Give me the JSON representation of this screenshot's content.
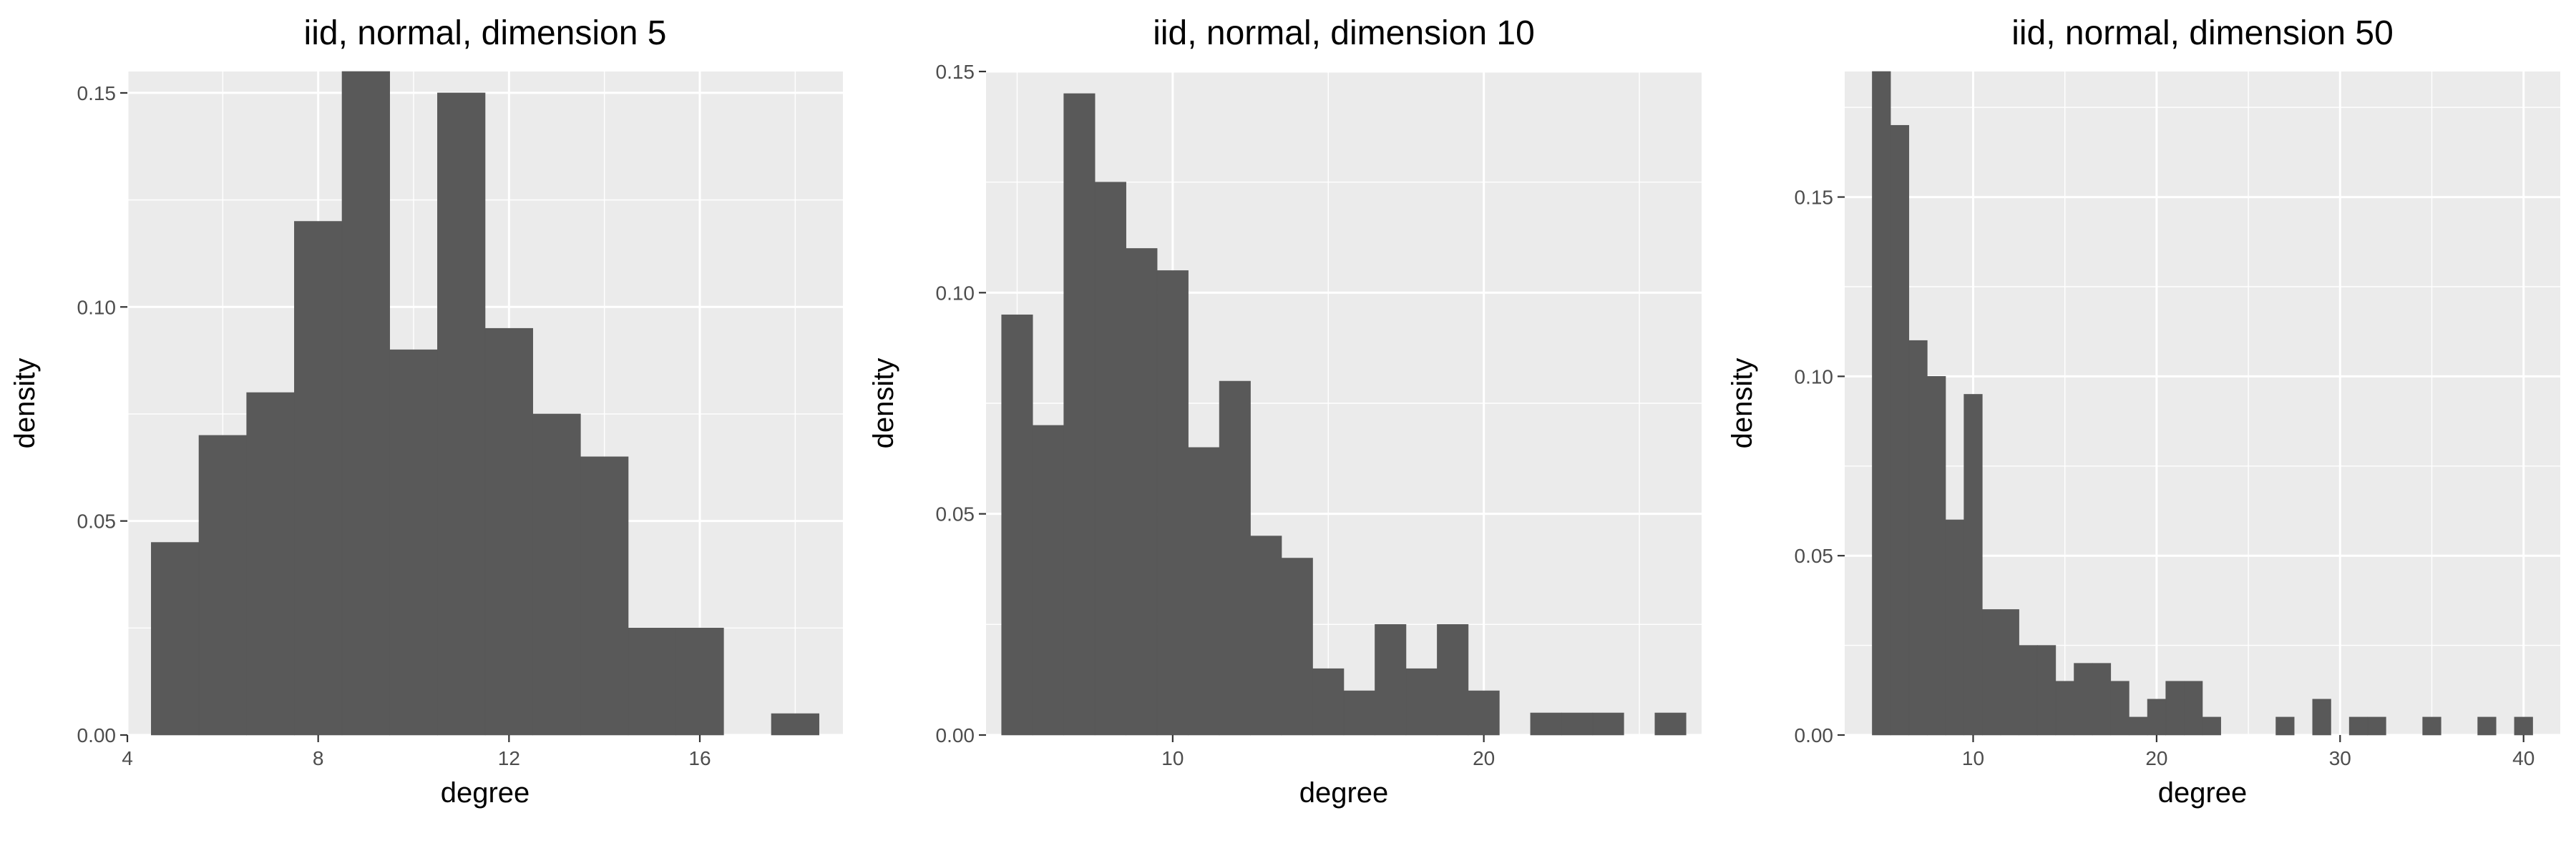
{
  "chart_data": [
    {
      "type": "bar",
      "title": "iid, normal, dimension 5",
      "xlabel": "degree",
      "ylabel": "density",
      "xlim": [
        4,
        19
      ],
      "ylim": [
        0,
        0.155
      ],
      "binwidth": 1,
      "x_ticks": [
        4,
        8,
        12,
        16
      ],
      "x_minor_ticks": [
        6,
        10,
        14,
        18
      ],
      "y_ticks": [
        0,
        0.05,
        0.1,
        0.15
      ],
      "y_tick_labels": [
        "0.00",
        "0.05",
        "0.10",
        "0.15"
      ],
      "bins": [
        {
          "x": 5,
          "y": 0.045
        },
        {
          "x": 6,
          "y": 0.07
        },
        {
          "x": 7,
          "y": 0.08
        },
        {
          "x": 8,
          "y": 0.12
        },
        {
          "x": 9,
          "y": 0.155
        },
        {
          "x": 10,
          "y": 0.09
        },
        {
          "x": 11,
          "y": 0.15
        },
        {
          "x": 12,
          "y": 0.095
        },
        {
          "x": 13,
          "y": 0.075
        },
        {
          "x": 14,
          "y": 0.065
        },
        {
          "x": 15,
          "y": 0.025
        },
        {
          "x": 16,
          "y": 0.025
        },
        {
          "x": 18,
          "y": 0.005
        }
      ]
    },
    {
      "type": "bar",
      "title": "iid, normal, dimension 10",
      "xlabel": "degree",
      "ylabel": "density",
      "xlim": [
        4,
        27
      ],
      "ylim": [
        0,
        0.15
      ],
      "binwidth": 1,
      "x_ticks": [
        10,
        20
      ],
      "x_minor_ticks": [
        5,
        15,
        25
      ],
      "y_ticks": [
        0,
        0.05,
        0.1,
        0.15
      ],
      "y_tick_labels": [
        "0.00",
        "0.05",
        "0.10",
        "0.15"
      ],
      "bins": [
        {
          "x": 5,
          "y": 0.095
        },
        {
          "x": 6,
          "y": 0.07
        },
        {
          "x": 7,
          "y": 0.145
        },
        {
          "x": 8,
          "y": 0.125
        },
        {
          "x": 9,
          "y": 0.11
        },
        {
          "x": 10,
          "y": 0.105
        },
        {
          "x": 11,
          "y": 0.065
        },
        {
          "x": 12,
          "y": 0.08
        },
        {
          "x": 13,
          "y": 0.045
        },
        {
          "x": 14,
          "y": 0.04
        },
        {
          "x": 15,
          "y": 0.015
        },
        {
          "x": 16,
          "y": 0.01
        },
        {
          "x": 17,
          "y": 0.025
        },
        {
          "x": 18,
          "y": 0.015
        },
        {
          "x": 19,
          "y": 0.025
        },
        {
          "x": 20,
          "y": 0.01
        },
        {
          "x": 22,
          "y": 0.005
        },
        {
          "x": 23,
          "y": 0.005
        },
        {
          "x": 24,
          "y": 0.005
        },
        {
          "x": 26,
          "y": 0.005
        }
      ]
    },
    {
      "type": "bar",
      "title": "iid, normal, dimension 50",
      "xlabel": "degree",
      "ylabel": "density",
      "xlim": [
        3,
        42
      ],
      "ylim": [
        0,
        0.185
      ],
      "binwidth": 1,
      "x_ticks": [
        10,
        20,
        30,
        40
      ],
      "x_minor_ticks": [
        5,
        15,
        25,
        35
      ],
      "y_ticks": [
        0,
        0.05,
        0.1,
        0.15
      ],
      "y_tick_labels": [
        "0.00",
        "0.05",
        "0.10",
        "0.15"
      ],
      "bins": [
        {
          "x": 5,
          "y": 0.185
        },
        {
          "x": 6,
          "y": 0.17
        },
        {
          "x": 7,
          "y": 0.11
        },
        {
          "x": 8,
          "y": 0.1
        },
        {
          "x": 9,
          "y": 0.06
        },
        {
          "x": 10,
          "y": 0.095
        },
        {
          "x": 11,
          "y": 0.035
        },
        {
          "x": 12,
          "y": 0.035
        },
        {
          "x": 13,
          "y": 0.025
        },
        {
          "x": 14,
          "y": 0.025
        },
        {
          "x": 15,
          "y": 0.015
        },
        {
          "x": 16,
          "y": 0.02
        },
        {
          "x": 17,
          "y": 0.02
        },
        {
          "x": 18,
          "y": 0.015
        },
        {
          "x": 19,
          "y": 0.005
        },
        {
          "x": 20,
          "y": 0.01
        },
        {
          "x": 21,
          "y": 0.015
        },
        {
          "x": 22,
          "y": 0.015
        },
        {
          "x": 23,
          "y": 0.005
        },
        {
          "x": 27,
          "y": 0.005
        },
        {
          "x": 29,
          "y": 0.01
        },
        {
          "x": 31,
          "y": 0.005
        },
        {
          "x": 32,
          "y": 0.005
        },
        {
          "x": 35,
          "y": 0.005
        },
        {
          "x": 38,
          "y": 0.005
        },
        {
          "x": 40,
          "y": 0.005
        }
      ]
    }
  ],
  "colors": {
    "panel_background": "#ebebeb",
    "grid": "#ffffff",
    "bar_fill": "#595959",
    "tick_text": "#4d4d4d"
  }
}
